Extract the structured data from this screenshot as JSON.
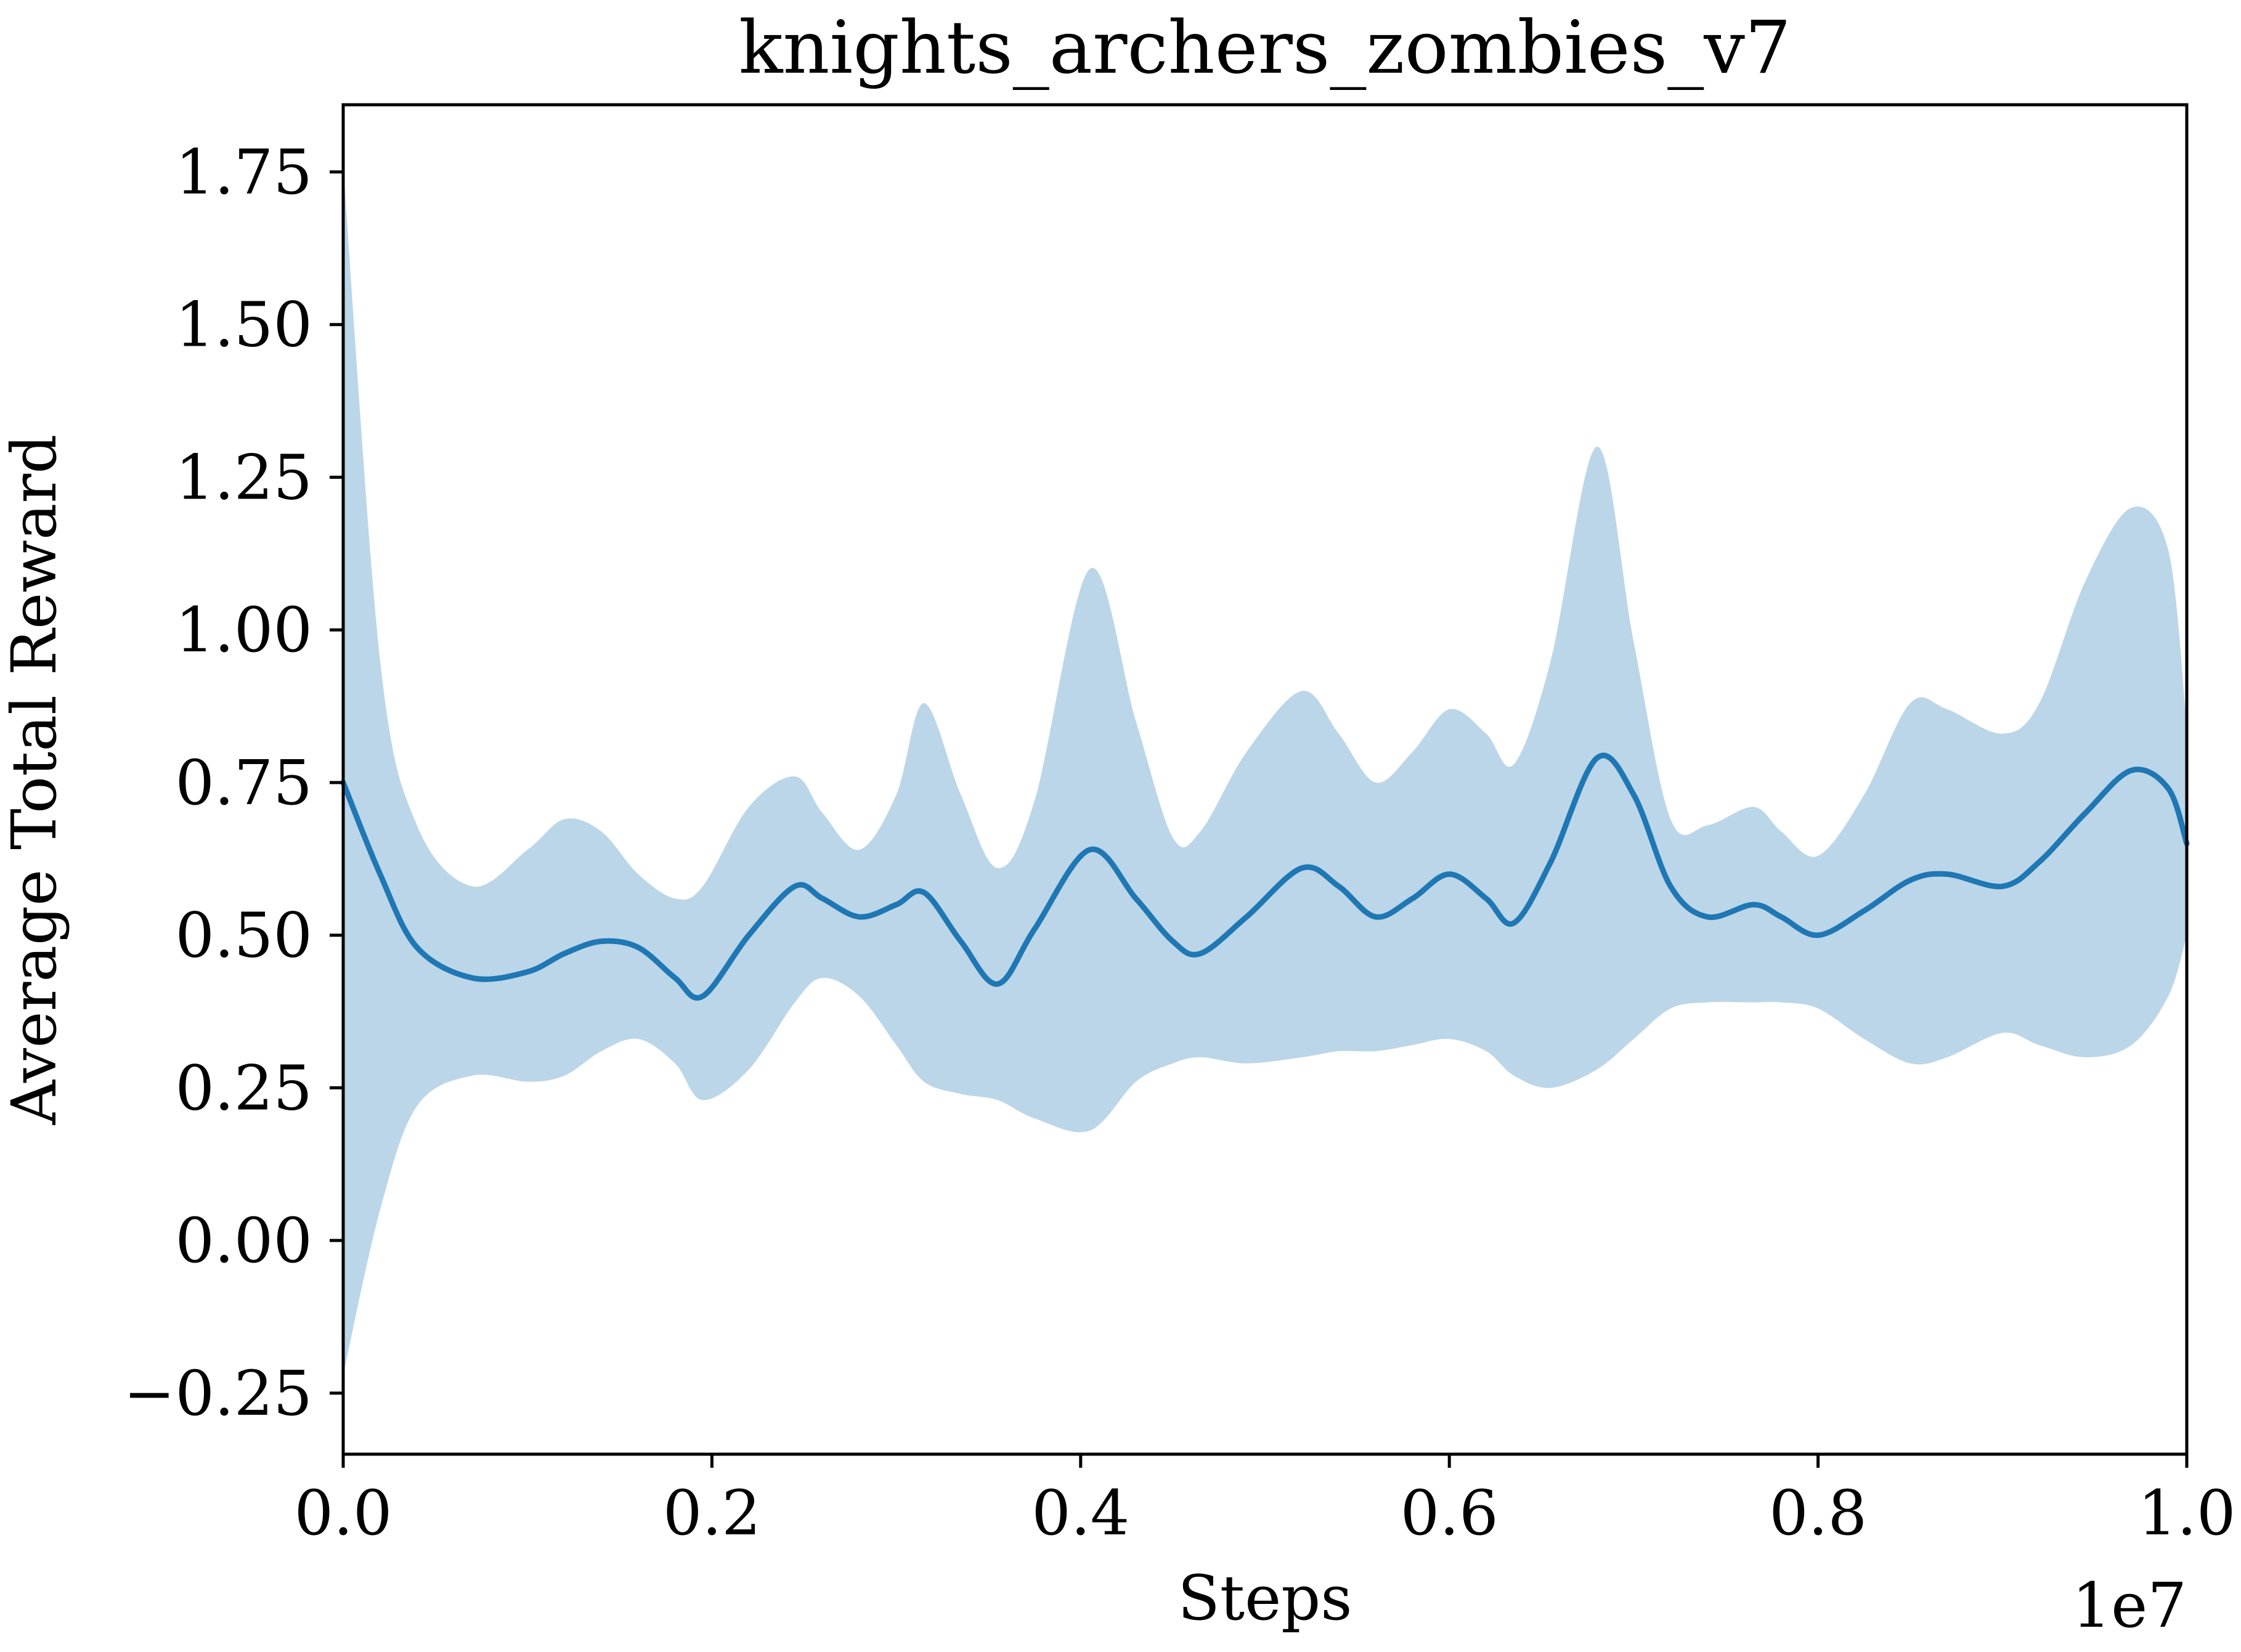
{
  "chart_data": {
    "type": "line",
    "title": "knights_archers_zombies_v7",
    "xlabel": "Steps",
    "ylabel": "Average Total Reward",
    "x_offset_label": "1e7",
    "x_multiplier": 10000000,
    "xlim": [
      0,
      10000000
    ],
    "ylim": [
      -0.35,
      1.86
    ],
    "x_ticks": [
      0,
      2000000,
      4000000,
      6000000,
      8000000,
      10000000
    ],
    "x_tick_labels": [
      "0.0",
      "0.2",
      "0.4",
      "0.6",
      "0.8",
      "1.0"
    ],
    "y_ticks": [
      -0.25,
      0,
      0.25,
      0.5,
      0.75,
      1.0,
      1.25,
      1.5,
      1.75
    ],
    "y_tick_labels": [
      "−0.25",
      "0.00",
      "0.25",
      "0.50",
      "0.75",
      "1.00",
      "1.25",
      "1.50",
      "1.75"
    ],
    "grid": false,
    "legend": "none",
    "colors": {
      "line": "#1f77b4",
      "band": "#1f77b4",
      "band_opacity": 0.3
    },
    "series": [
      {
        "x": [
          0,
          200000,
          400000,
          700000,
          1000000,
          1200000,
          1400000,
          1600000,
          1800000,
          1950000,
          2200000,
          2450000,
          2600000,
          2800000,
          3000000,
          3150000,
          3350000,
          3550000,
          3750000,
          4050000,
          4300000,
          4500000,
          4650000,
          4900000,
          5200000,
          5400000,
          5600000,
          5800000,
          6000000,
          6200000,
          6350000,
          6550000,
          6800000,
          7000000,
          7200000,
          7400000,
          7650000,
          7800000,
          8000000,
          8250000,
          8500000,
          8700000,
          9000000,
          9200000,
          9450000,
          9700000,
          9900000,
          10000000
        ],
        "y": [
          0.75,
          0.6,
          0.48,
          0.43,
          0.44,
          0.47,
          0.49,
          0.48,
          0.43,
          0.4,
          0.5,
          0.58,
          0.56,
          0.53,
          0.55,
          0.57,
          0.49,
          0.42,
          0.51,
          0.64,
          0.56,
          0.49,
          0.47,
          0.53,
          0.61,
          0.58,
          0.53,
          0.56,
          0.6,
          0.56,
          0.52,
          0.62,
          0.79,
          0.73,
          0.58,
          0.53,
          0.55,
          0.53,
          0.5,
          0.54,
          0.59,
          0.6,
          0.58,
          0.62,
          0.7,
          0.77,
          0.74,
          0.65
        ],
        "lower": [
          -0.22,
          0.05,
          0.22,
          0.27,
          0.26,
          0.27,
          0.31,
          0.33,
          0.29,
          0.23,
          0.28,
          0.39,
          0.43,
          0.4,
          0.32,
          0.26,
          0.24,
          0.23,
          0.2,
          0.18,
          0.26,
          0.29,
          0.3,
          0.29,
          0.3,
          0.31,
          0.31,
          0.32,
          0.33,
          0.31,
          0.27,
          0.25,
          0.28,
          0.33,
          0.38,
          0.39,
          0.39,
          0.39,
          0.38,
          0.33,
          0.29,
          0.3,
          0.34,
          0.32,
          0.3,
          0.32,
          0.4,
          0.5
        ],
        "upper": [
          1.76,
          0.95,
          0.68,
          0.58,
          0.64,
          0.69,
          0.67,
          0.6,
          0.56,
          0.58,
          0.71,
          0.76,
          0.7,
          0.64,
          0.73,
          0.88,
          0.73,
          0.61,
          0.72,
          1.1,
          0.85,
          0.66,
          0.67,
          0.8,
          0.9,
          0.83,
          0.75,
          0.8,
          0.87,
          0.83,
          0.78,
          0.95,
          1.3,
          0.98,
          0.69,
          0.68,
          0.71,
          0.67,
          0.63,
          0.73,
          0.88,
          0.87,
          0.83,
          0.88,
          1.08,
          1.2,
          1.13,
          0.84
        ]
      }
    ]
  }
}
